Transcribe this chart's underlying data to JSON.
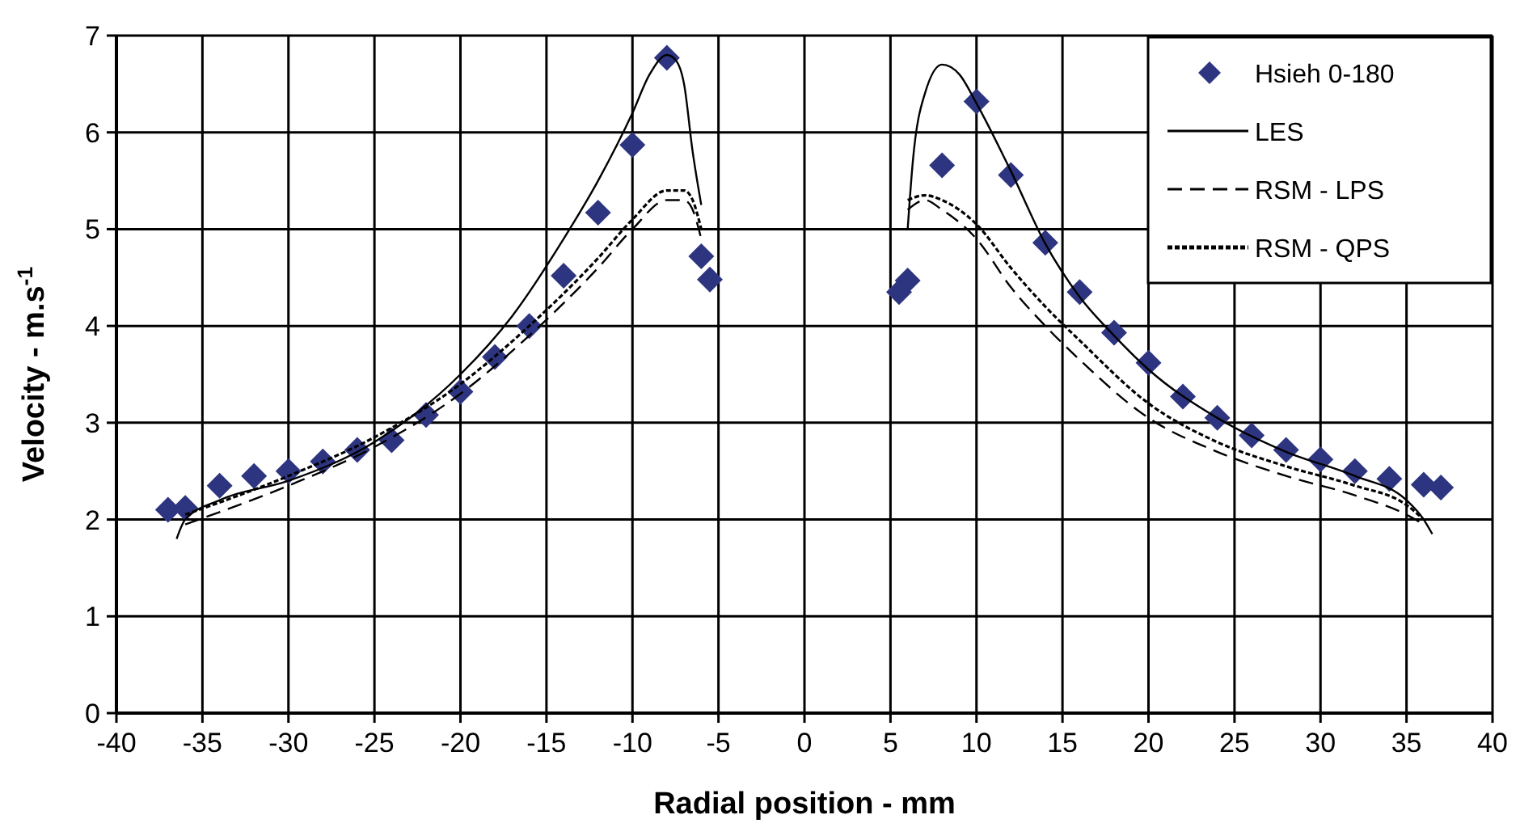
{
  "chart_data": {
    "type": "line",
    "xlabel": "Radial position - mm",
    "ylabel": "Velocity - m.s$^{-1}$",
    "xlim": [
      -40,
      40
    ],
    "xticks": [
      -40,
      -35,
      -30,
      -25,
      -20,
      -15,
      -10,
      -5,
      0,
      5,
      10,
      15,
      20,
      25,
      30,
      35,
      40
    ],
    "ylim": [
      0,
      7
    ],
    "yticks": [
      0,
      1,
      2,
      3,
      4,
      5,
      6,
      7
    ],
    "grid": true,
    "legend": "top right",
    "series": [
      {
        "name": "Hsieh 0-180",
        "type": "scatter",
        "marker": "diamond",
        "color": "#2e3580",
        "x": [
          -37,
          -36,
          -34,
          -32,
          -30,
          -28,
          -26,
          -24,
          -22,
          -20,
          -18,
          -16,
          -14,
          -12,
          -10,
          -8,
          -6,
          -5.5,
          5.5,
          6,
          8,
          10,
          12,
          14,
          16,
          18,
          20,
          22,
          24,
          26,
          28,
          30,
          32,
          34,
          36,
          37
        ],
        "values": [
          2.1,
          2.12,
          2.35,
          2.45,
          2.5,
          2.6,
          2.72,
          2.82,
          3.08,
          3.32,
          3.68,
          4.0,
          4.52,
          5.17,
          5.87,
          6.77,
          4.72,
          4.48,
          4.35,
          4.47,
          5.66,
          6.32,
          5.56,
          4.86,
          4.35,
          3.93,
          3.62,
          3.27,
          3.05,
          2.87,
          2.72,
          2.62,
          2.5,
          2.42,
          2.36,
          2.33
        ]
      },
      {
        "name": "LES",
        "line_style": "solid",
        "color": "#000000",
        "x": [
          -36.5,
          -36,
          -34,
          -30,
          -25,
          -20,
          -17,
          -14,
          -12,
          -10,
          -9,
          -8,
          -7.5,
          -7,
          -6.5,
          -6,
          0,
          6,
          6.3,
          7,
          8,
          9,
          10,
          12,
          14,
          16,
          18,
          20,
          24,
          28,
          32,
          35,
          36,
          36.5
        ],
        "values": [
          1.8,
          2.0,
          2.2,
          2.4,
          2.8,
          3.5,
          4.1,
          4.9,
          5.5,
          6.2,
          6.6,
          6.8,
          6.75,
          6.5,
          5.8,
          5.25,
          null,
          5.0,
          5.7,
          6.4,
          6.7,
          6.6,
          6.3,
          5.6,
          4.85,
          4.3,
          3.9,
          3.55,
          3.05,
          2.7,
          2.45,
          2.2,
          2.0,
          1.85
        ]
      },
      {
        "name": "RSM - LPS",
        "line_style": "dashed",
        "color": "#000000",
        "x": [
          -36,
          -30,
          -25,
          -20,
          -16,
          -12,
          -10,
          -8,
          -7,
          -6.5,
          -6,
          0,
          6,
          7,
          8,
          10,
          12,
          14,
          16,
          20,
          24,
          28,
          32,
          35,
          36
        ],
        "values": [
          1.95,
          2.35,
          2.75,
          3.3,
          3.9,
          4.6,
          5.0,
          5.3,
          5.3,
          5.2,
          4.9,
          null,
          5.2,
          5.3,
          5.2,
          4.9,
          4.4,
          4.0,
          3.65,
          3.05,
          2.7,
          2.45,
          2.25,
          2.05,
          1.95
        ]
      },
      {
        "name": "RSM - QPS",
        "line_style": "dotted",
        "color": "#000000",
        "x": [
          -36,
          -30,
          -25,
          -20,
          -16,
          -12,
          -10,
          -8,
          -7,
          -6.5,
          -6,
          0,
          6,
          7,
          8,
          10,
          12,
          14,
          16,
          20,
          24,
          28,
          32,
          35,
          36
        ],
        "values": [
          2.05,
          2.45,
          2.85,
          3.4,
          4.0,
          4.7,
          5.1,
          5.4,
          5.4,
          5.3,
          5.0,
          null,
          5.3,
          5.35,
          5.3,
          5.05,
          4.6,
          4.2,
          3.85,
          3.2,
          2.8,
          2.55,
          2.35,
          2.15,
          2.0
        ]
      }
    ]
  }
}
